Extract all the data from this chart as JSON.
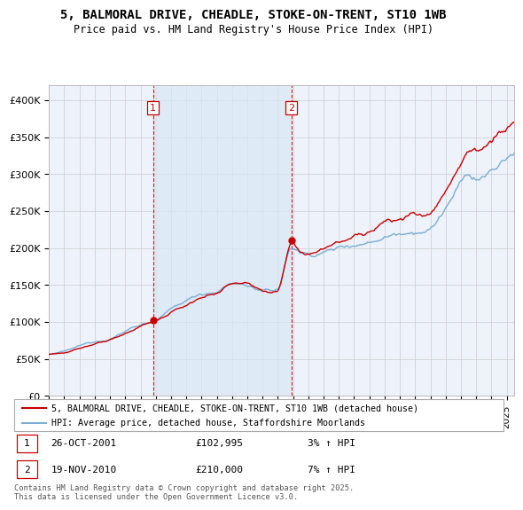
{
  "title_line1": "5, BALMORAL DRIVE, CHEADLE, STOKE-ON-TRENT, ST10 1WB",
  "title_line2": "Price paid vs. HM Land Registry's House Price Index (HPI)",
  "ylim": [
    0,
    420000
  ],
  "yticks": [
    0,
    50000,
    100000,
    150000,
    200000,
    250000,
    300000,
    350000,
    400000
  ],
  "ytick_labels": [
    "£0",
    "£50K",
    "£100K",
    "£150K",
    "£200K",
    "£250K",
    "£300K",
    "£350K",
    "£400K"
  ],
  "year_start": 1995,
  "year_end": 2025,
  "sale1_year": 2001.82,
  "sale1_price": 102995,
  "sale1_date": "26-OCT-2001",
  "sale1_hpi": "3% ↑ HPI",
  "sale2_year": 2010.89,
  "sale2_price": 210000,
  "sale2_date": "19-NOV-2010",
  "sale2_hpi": "7% ↑ HPI",
  "property_color": "#cc0000",
  "hpi_color": "#7aaed6",
  "hpi_fill_color": "#d8e8f5",
  "background_color": "#ffffff",
  "plot_bg_color": "#eef2fb",
  "grid_color": "#cccccc",
  "legend_line1": "5, BALMORAL DRIVE, CHEADLE, STOKE-ON-TRENT, ST10 1WB (detached house)",
  "legend_line2": "HPI: Average price, detached house, Staffordshire Moorlands",
  "footnote": "Contains HM Land Registry data © Crown copyright and database right 2025.\nThis data is licensed under the Open Government Licence v3.0.",
  "title_fontsize": 10,
  "label_fontsize": 9
}
